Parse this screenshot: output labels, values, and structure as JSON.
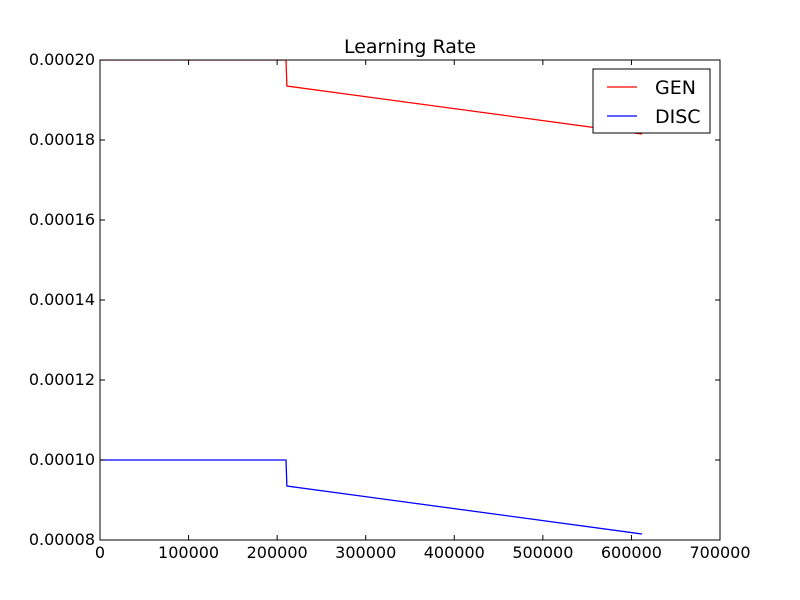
{
  "chart_data": {
    "type": "line",
    "title": "Learning Rate",
    "xlabel": "",
    "ylabel": "",
    "xlim": [
      0,
      700000
    ],
    "ylim": [
      8e-05,
      0.0002
    ],
    "xticks": [
      0,
      100000,
      200000,
      300000,
      400000,
      500000,
      600000,
      700000
    ],
    "xtick_labels": [
      "0",
      "100000",
      "200000",
      "300000",
      "400000",
      "500000",
      "600000",
      "700000"
    ],
    "yticks": [
      8e-05,
      0.0001,
      0.00012,
      0.00014,
      0.00016,
      0.00018,
      0.0002
    ],
    "ytick_labels": [
      "0.00008",
      "0.00010",
      "0.00012",
      "0.00014",
      "0.00016",
      "0.00018",
      "0.00020"
    ],
    "grid": false,
    "legend_position": "top-right",
    "series": [
      {
        "name": "GEN",
        "color": "#ff0000",
        "x": [
          0,
          210000,
          211000,
          612000
        ],
        "y": [
          0.0002,
          0.0002,
          0.0001935,
          0.0001815
        ]
      },
      {
        "name": "DISC",
        "color": "#0000ff",
        "x": [
          0,
          210000,
          211000,
          612000
        ],
        "y": [
          0.0001,
          0.0001,
          9.35e-05,
          8.15e-05
        ]
      }
    ]
  }
}
